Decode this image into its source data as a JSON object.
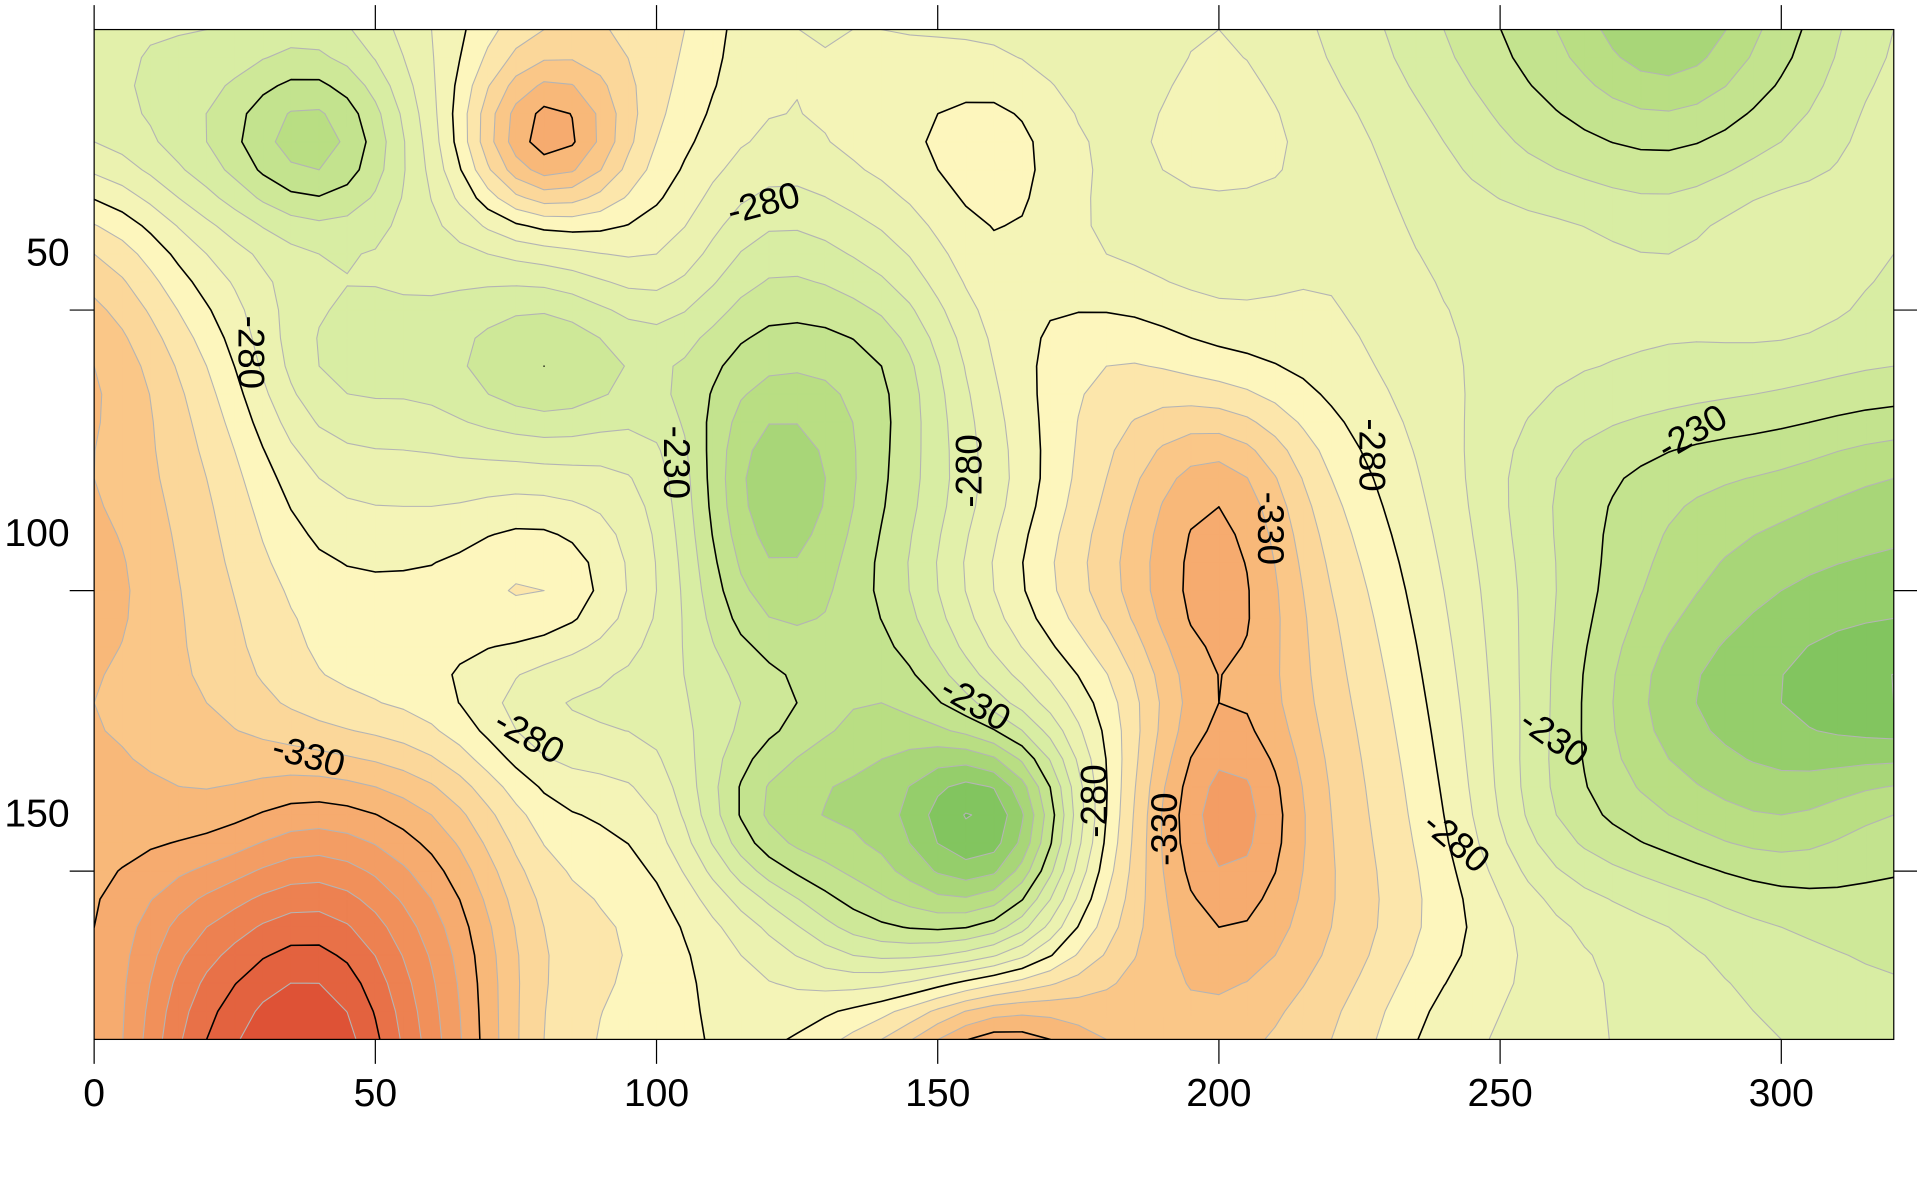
{
  "chart_data": {
    "type": "contour",
    "x": [
      0,
      20,
      40,
      60,
      80,
      100,
      120,
      140,
      160,
      180,
      200,
      220,
      240,
      260,
      280,
      300,
      320
    ],
    "y": [
      0,
      20,
      40,
      60,
      80,
      100,
      120,
      140,
      160,
      180
    ],
    "z": [
      [
        -250,
        -250,
        -245,
        -270,
        -300,
        -295,
        -272,
        -270,
        -268,
        -262,
        -270,
        -258,
        -240,
        -220,
        -200,
        -225,
        -250
      ],
      [
        -260,
        -240,
        -215,
        -265,
        -335,
        -290,
        -268,
        -275,
        -285,
        -268,
        -275,
        -265,
        -250,
        -235,
        -228,
        -240,
        -255
      ],
      [
        -300,
        -270,
        -250,
        -255,
        -265,
        -270,
        -245,
        -255,
        -278,
        -270,
        -265,
        -268,
        -258,
        -255,
        -250,
        -260,
        -250
      ],
      [
        -320,
        -290,
        -250,
        -245,
        -230,
        -242,
        -222,
        -230,
        -270,
        -290,
        -285,
        -275,
        -262,
        -252,
        -248,
        -245,
        -240
      ],
      [
        -320,
        -300,
        -270,
        -265,
        -265,
        -255,
        -203,
        -228,
        -265,
        -300,
        -325,
        -290,
        -265,
        -240,
        -225,
        -218,
        -210
      ],
      [
        -325,
        -305,
        -285,
        -283,
        -290,
        -260,
        -215,
        -232,
        -270,
        -305,
        -335,
        -300,
        -270,
        -240,
        -215,
        -200,
        -195
      ],
      [
        -320,
        -310,
        -295,
        -285,
        -262,
        -255,
        -235,
        -220,
        -245,
        -285,
        -330,
        -305,
        -275,
        -238,
        -205,
        -190,
        -180
      ],
      [
        -325,
        -325,
        -335,
        -320,
        -285,
        -270,
        -218,
        -205,
        -182,
        -280,
        -345,
        -310,
        -280,
        -240,
        -220,
        -210,
        -220
      ],
      [
        -330,
        -360,
        -375,
        -345,
        -300,
        -285,
        -258,
        -232,
        -235,
        -295,
        -330,
        -310,
        -285,
        -262,
        -250,
        -240,
        -235
      ],
      [
        -330,
        -380,
        -400,
        -355,
        -300,
        -285,
        -278,
        -300,
        -335,
        -320,
        -315,
        -300,
        -275,
        -265,
        -255,
        -250,
        -245
      ]
    ],
    "levels": [
      -390,
      -380,
      -370,
      -360,
      -350,
      -340,
      -330,
      -320,
      -310,
      -300,
      -290,
      -280,
      -270,
      -260,
      -250,
      -240,
      -230,
      -220,
      -210,
      -200,
      -190,
      -180
    ],
    "major_levels": [
      -380,
      -330,
      -280,
      -230
    ],
    "major_line_color": "#000000",
    "minor_line_color": "#b4b4b4",
    "colormap": [
      "#de5236",
      "#f08b57",
      "#f9bd7c",
      "#fdf6bd",
      "#dcefa6",
      "#b5dc80",
      "#6fbd52"
    ],
    "contour_labels": [
      -280,
      -280,
      -230,
      -280,
      -280,
      -330,
      -230,
      -230,
      -280,
      -330,
      -280,
      -330,
      -280,
      -230
    ],
    "xlim": [
      0,
      320
    ],
    "ylim": [
      0,
      180
    ],
    "y_inverted": true,
    "xticks": [
      0,
      50,
      100,
      150,
      200,
      250,
      300
    ],
    "yticks": [
      50,
      100,
      150
    ]
  }
}
